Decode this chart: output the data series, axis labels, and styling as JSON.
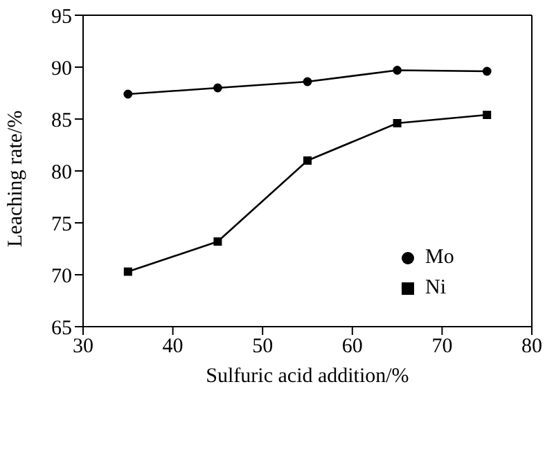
{
  "chart_data": {
    "type": "line",
    "xlabel": "Sulfuric acid addition/%",
    "ylabel": "Leaching rate/%",
    "x": [
      35,
      45,
      55,
      65,
      75
    ],
    "series": [
      {
        "name": "Ni",
        "color": "#000000",
        "marker": "square",
        "values": [
          70.3,
          73.2,
          81.0,
          84.6,
          85.4
        ]
      },
      {
        "name": "Mo",
        "color": "#000000",
        "marker": "circle",
        "values": [
          87.4,
          88.0,
          88.6,
          89.7,
          89.6
        ]
      }
    ],
    "xlim": [
      30,
      80
    ],
    "xticks": [
      30,
      40,
      50,
      60,
      70,
      80
    ],
    "ylim": [
      65,
      95
    ],
    "yticks": [
      65,
      70,
      75,
      80,
      85,
      90,
      95
    ],
    "grid": false,
    "legend": "right",
    "line_style": "solid"
  }
}
